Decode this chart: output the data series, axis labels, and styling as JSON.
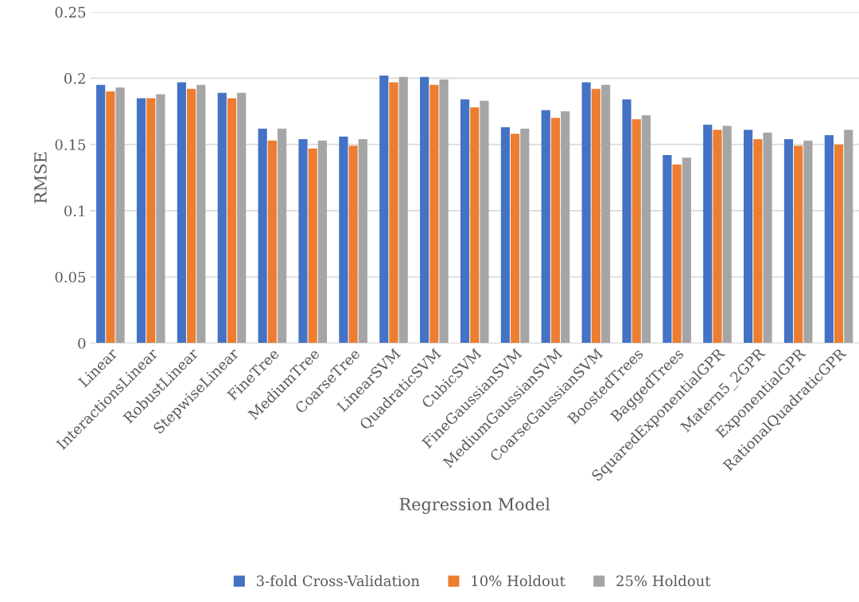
{
  "chart_data": {
    "type": "bar",
    "xlabel": "Regression Model",
    "ylabel": "RMSE",
    "categories": [
      "Linear",
      "InteractionsLinear",
      "RobustLinear",
      "StepwiseLinear",
      "FineTree",
      "MediumTree",
      "CoarseTree",
      "LinearSVM",
      "QuadraticSVM",
      "CubicSVM",
      "FineGaussianSVM",
      "MediumGaussianSVM",
      "CoarseGaussianSVM",
      "BoostedTrees",
      "BaggedTrees",
      "SquaredExponentialGPR",
      "Matern5_2GPR",
      "ExponentialGPR",
      "RationalQuadraticGPR"
    ],
    "series": [
      {
        "name": "3-fold Cross-Validation",
        "color": "#4472c4",
        "values": [
          0.195,
          0.185,
          0.197,
          0.189,
          0.162,
          0.154,
          0.156,
          0.202,
          0.201,
          0.184,
          0.163,
          0.176,
          0.197,
          0.184,
          0.142,
          0.165,
          0.161,
          0.154,
          0.157
        ]
      },
      {
        "name": "10% Holdout",
        "color": "#ed7d31",
        "values": [
          0.19,
          0.185,
          0.192,
          0.185,
          0.153,
          0.147,
          0.149,
          0.197,
          0.195,
          0.178,
          0.158,
          0.17,
          0.192,
          0.169,
          0.135,
          0.161,
          0.154,
          0.149,
          0.15
        ]
      },
      {
        "name": "25% Holdout",
        "color": "#a5a5a5",
        "values": [
          0.193,
          0.188,
          0.195,
          0.189,
          0.162,
          0.153,
          0.154,
          0.201,
          0.199,
          0.183,
          0.162,
          0.175,
          0.195,
          0.172,
          0.14,
          0.164,
          0.159,
          0.153,
          0.161
        ]
      }
    ],
    "ylim": [
      0,
      0.25
    ],
    "yticks": [
      0,
      0.05,
      0.1,
      0.15,
      0.2,
      0.25
    ],
    "grid": "y",
    "legend": "bottom"
  }
}
